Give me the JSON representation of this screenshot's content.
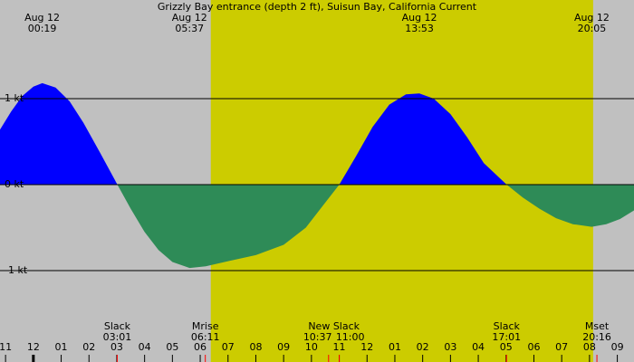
{
  "chart_data": {
    "type": "area",
    "title": "Grizzly Bay entrance (depth 2 ft), Suisun Bay, California Current",
    "x": [
      -1.2,
      -0.8,
      -0.4,
      0.0,
      0.32,
      0.8,
      1.3,
      1.8,
      2.4,
      3.02,
      3.5,
      4.0,
      4.5,
      5.0,
      5.62,
      6.2,
      7.0,
      8.0,
      9.0,
      9.8,
      10.4,
      11.0,
      11.6,
      12.2,
      12.8,
      13.4,
      13.88,
      14.4,
      15.0,
      15.6,
      16.2,
      17.02,
      17.6,
      18.2,
      18.8,
      19.4,
      20.08,
      20.6,
      21.1,
      21.6
    ],
    "values": [
      0.64,
      0.85,
      1.03,
      1.14,
      1.18,
      1.13,
      0.97,
      0.72,
      0.37,
      0,
      -0.28,
      -0.55,
      -0.76,
      -0.9,
      -0.97,
      -0.95,
      -0.89,
      -0.82,
      -0.7,
      -0.5,
      -0.25,
      0,
      0.33,
      0.67,
      0.93,
      1.05,
      1.06,
      1.0,
      0.82,
      0.55,
      0.25,
      0,
      -0.15,
      -0.28,
      -0.39,
      -0.46,
      -0.49,
      -0.46,
      -0.4,
      -0.3
    ],
    "flood_color": "#0000ff",
    "ebb_color": "#2e8b57",
    "background_color": "#c0c0c0",
    "daylight_color": "#cccc00",
    "daylight": [
      6.38,
      20.13
    ],
    "xlim": [
      -1.2,
      21.6
    ],
    "ylim": [
      -2,
      2
    ],
    "yticks": [
      {
        "value": 1,
        "label": "1 kt"
      },
      {
        "value": 0,
        "label": "0 kt"
      },
      {
        "value": -1,
        "label": "-1 kt"
      }
    ],
    "xticks": [
      {
        "value": -1,
        "label": "11"
      },
      {
        "value": 0,
        "label": "12"
      },
      {
        "value": 1,
        "label": "01"
      },
      {
        "value": 2,
        "label": "02"
      },
      {
        "value": 3,
        "label": "03"
      },
      {
        "value": 4,
        "label": "04"
      },
      {
        "value": 5,
        "label": "05"
      },
      {
        "value": 6,
        "label": "06"
      },
      {
        "value": 7,
        "label": "07"
      },
      {
        "value": 8,
        "label": "08"
      },
      {
        "value": 9,
        "label": "09"
      },
      {
        "value": 10,
        "label": "10"
      },
      {
        "value": 11,
        "label": "11"
      },
      {
        "value": 12,
        "label": "12"
      },
      {
        "value": 13,
        "label": "01"
      },
      {
        "value": 14,
        "label": "02"
      },
      {
        "value": 15,
        "label": "03"
      },
      {
        "value": 16,
        "label": "04"
      },
      {
        "value": 17,
        "label": "05"
      },
      {
        "value": 18,
        "label": "06"
      },
      {
        "value": 19,
        "label": "07"
      },
      {
        "value": 20,
        "label": "08"
      },
      {
        "value": 21,
        "label": "09"
      }
    ],
    "top_annotations": [
      {
        "date": "Aug 12",
        "time": "00:19"
      },
      {
        "date": "Aug 12",
        "time": "05:37"
      },
      {
        "date": "Aug 12",
        "time": "13:53"
      },
      {
        "date": "Aug 12",
        "time": "20:05"
      }
    ],
    "bottom_events": [
      {
        "label": "Slack",
        "times": [
          "03:01"
        ]
      },
      {
        "label": "Mrise",
        "times": [
          "06:11"
        ]
      },
      {
        "label": "New Slack",
        "times": [
          "10:37",
          "11:00"
        ]
      },
      {
        "label": "Slack",
        "times": [
          "17:01"
        ]
      },
      {
        "label": "Mset",
        "times": [
          "20:16"
        ]
      }
    ]
  }
}
